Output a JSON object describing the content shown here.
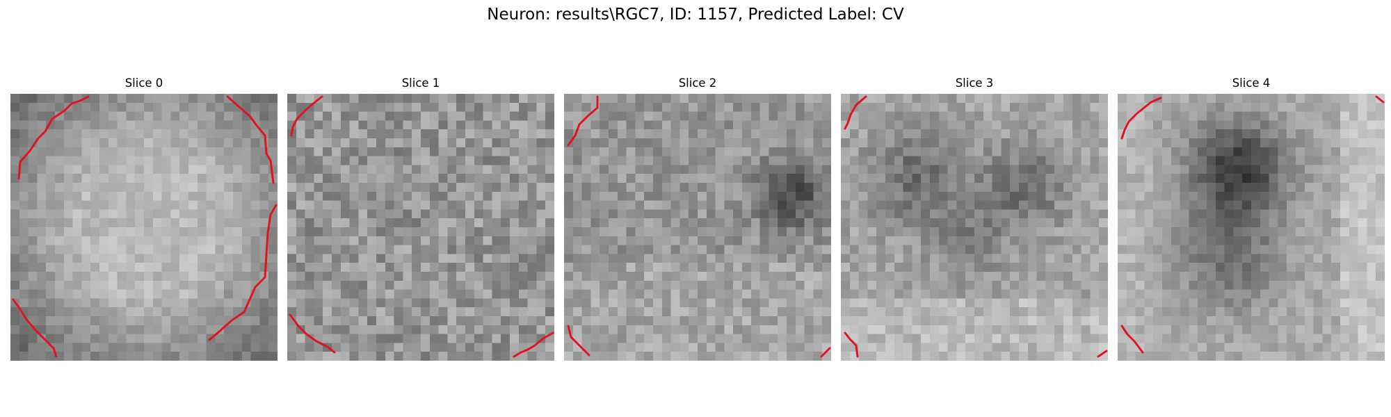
{
  "figure": {
    "title": "Neuron: results\\RGC7, ID: 1157, Predicted Label: CV"
  },
  "slices": [
    {
      "title": "Slice 0"
    },
    {
      "title": "Slice 1"
    },
    {
      "title": "Slice 2"
    },
    {
      "title": "Slice 3"
    },
    {
      "title": "Slice 4"
    }
  ],
  "colors": {
    "contour": "#e0141e",
    "colormap": "gray"
  }
}
